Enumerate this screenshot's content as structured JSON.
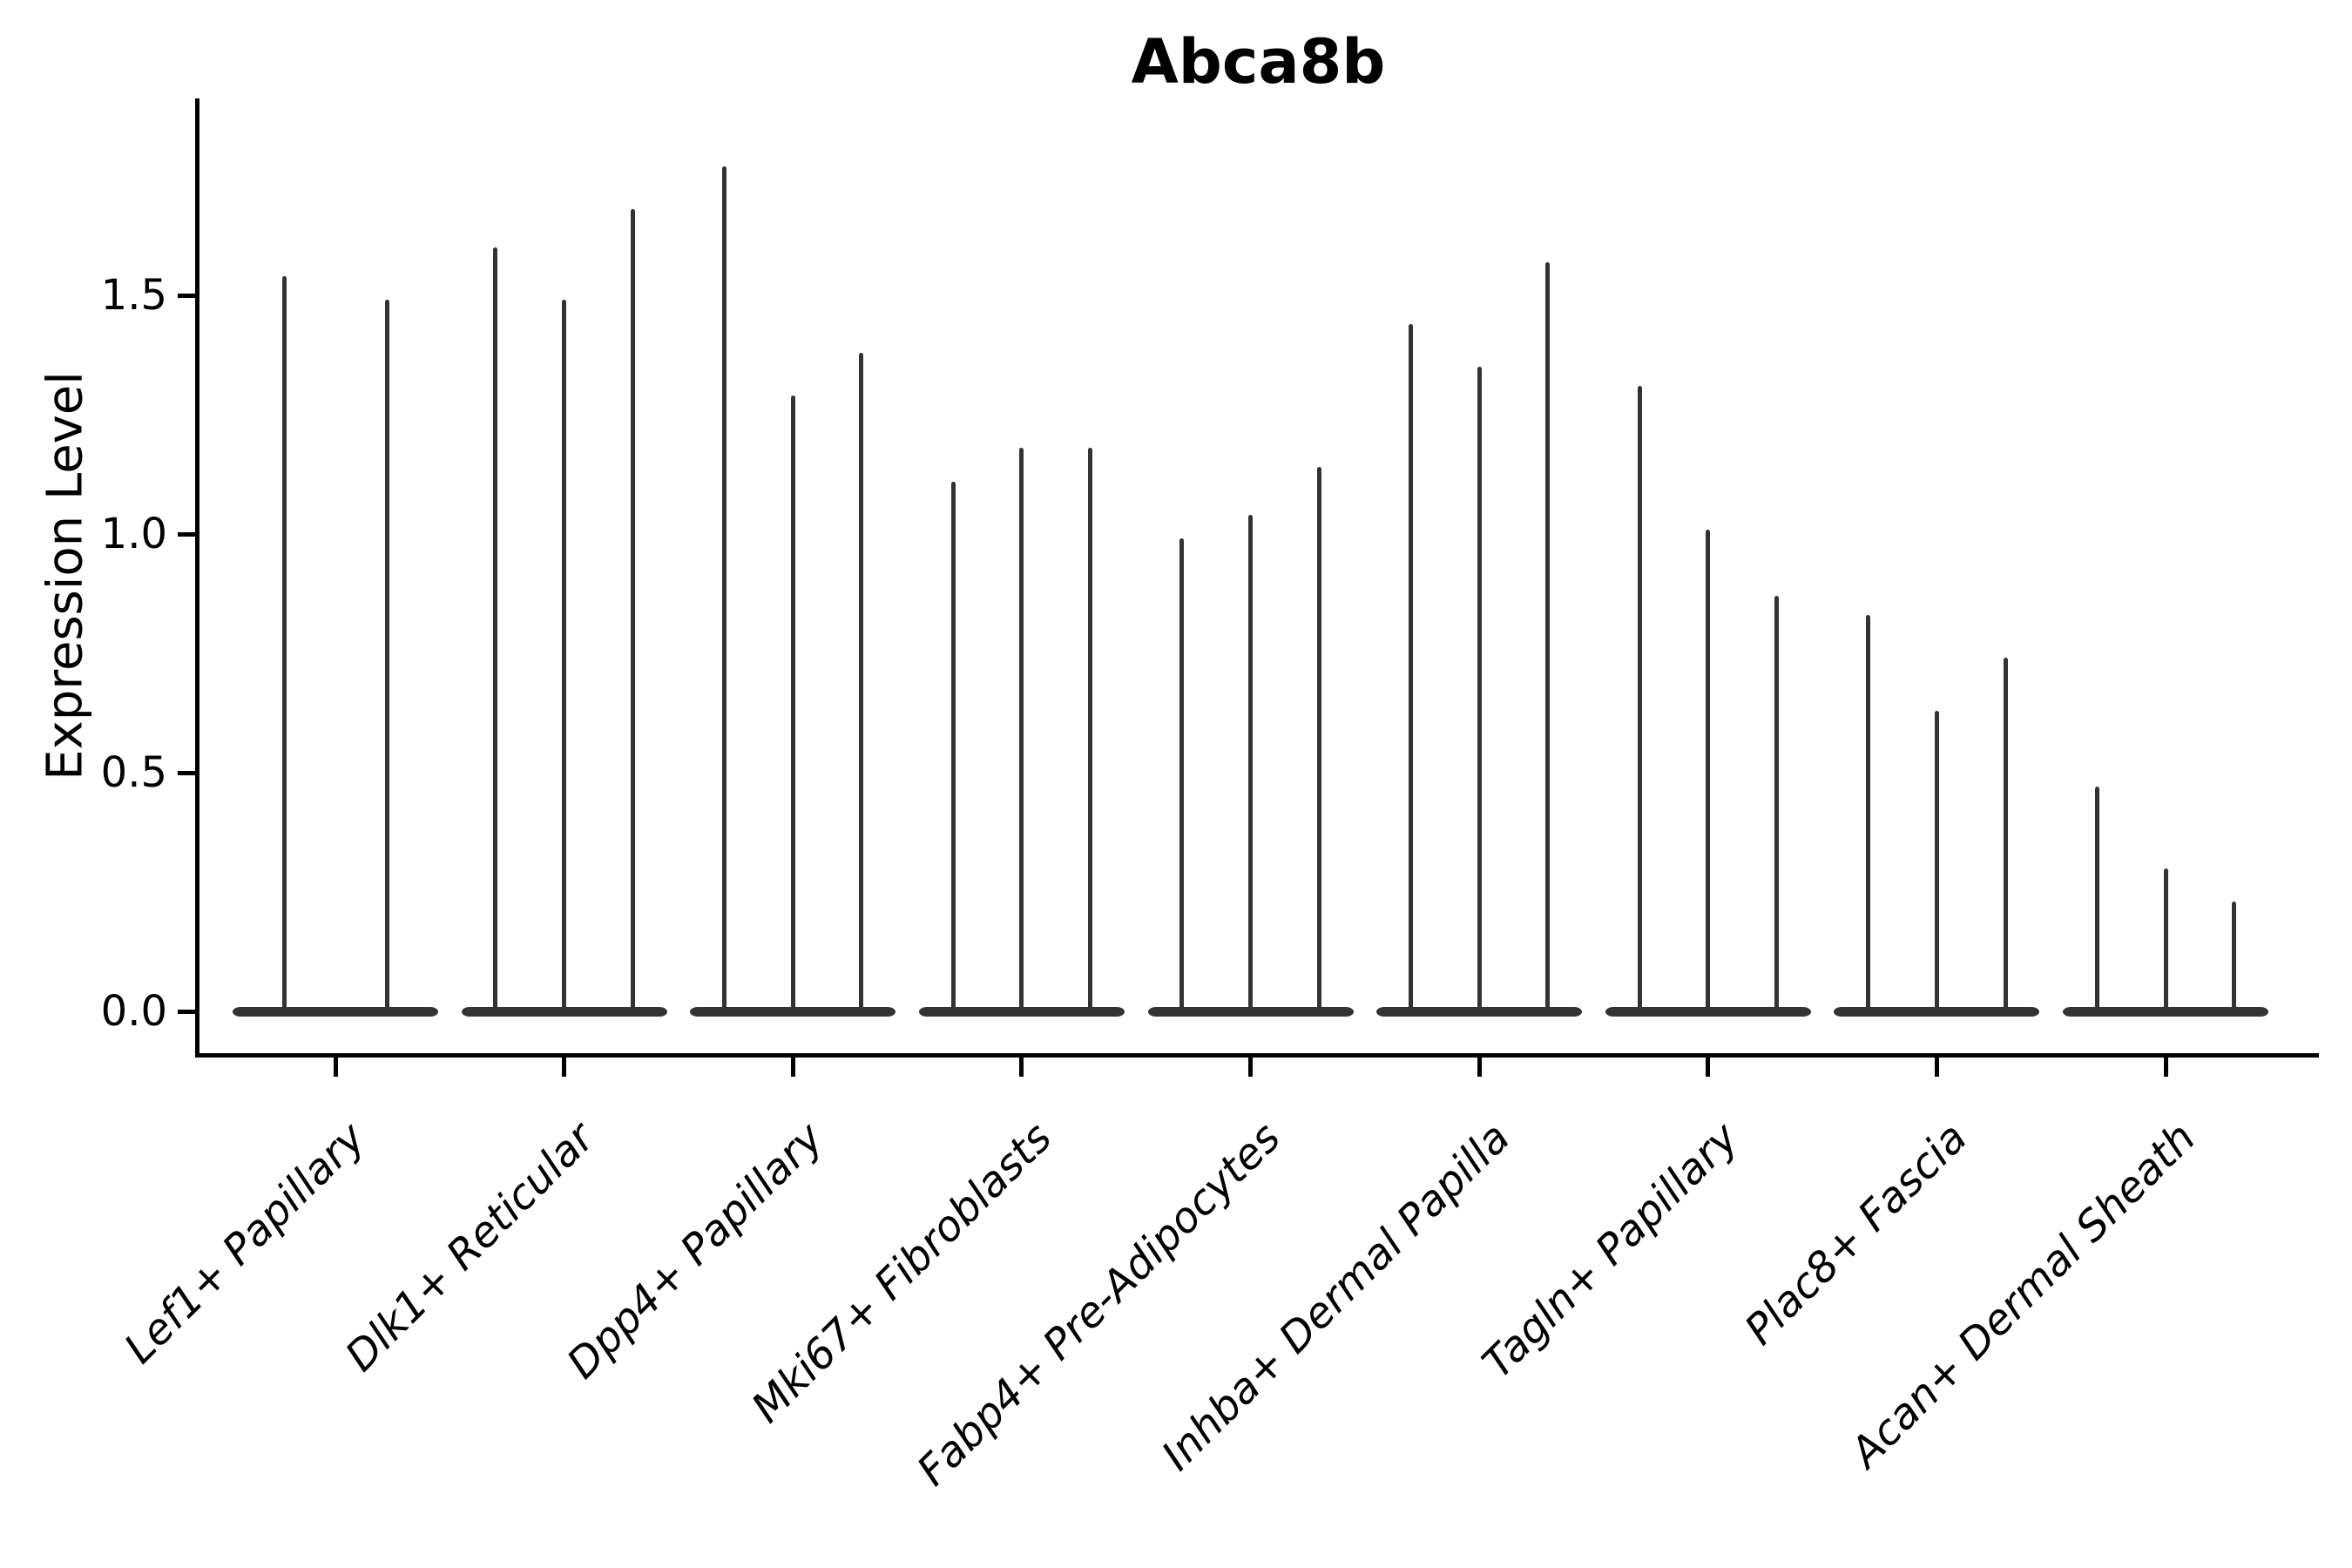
{
  "figure": {
    "title": "Abca8b",
    "y_axis": {
      "label": "Expression Level",
      "tick_labels": [
        "0.0",
        "0.5",
        "1.0",
        "1.5"
      ]
    }
  },
  "chart_data": {
    "type": "violin",
    "title": "Abca8b",
    "xlabel": "",
    "ylabel": "Expression Level",
    "ylim": [
      0,
      1.91
    ],
    "yticks": [
      0.0,
      0.5,
      1.0,
      1.5
    ],
    "ytick_labels": [
      "0.0",
      "0.5",
      "1.0",
      "1.5"
    ],
    "grid": false,
    "legend": "none",
    "colors": {
      "violin": "#333333",
      "axis": "#000000",
      "text": "#000000",
      "background": "#ffffff"
    },
    "categories": [
      "Lef1+ Papillary",
      "Dlk1+ Reticular",
      "Dpp4+ Papillary",
      "Mki67+ Fibroblasts",
      "Fabp4+ Pre-Adipocytes",
      "Inhba+ Dermal Papilla",
      "Tagln+ Papillary",
      "Plac8+ Fascia",
      "Acan+ Dermal Sheath"
    ],
    "violin_shape_note": "each violin is a flat wide bulk at expression 0 with a thin vertical spike up to its maximum expression value",
    "groups": [
      {
        "category": "Lef1+ Papillary",
        "violins": [
          {
            "max_expression": 1.54
          },
          {
            "max_expression": 1.49
          }
        ]
      },
      {
        "category": "Dlk1+ Reticular",
        "violins": [
          {
            "max_expression": 1.6
          },
          {
            "max_expression": 1.49
          },
          {
            "max_expression": 1.68
          }
        ]
      },
      {
        "category": "Dpp4+ Papillary",
        "violins": [
          {
            "max_expression": 1.77
          },
          {
            "max_expression": 1.29
          },
          {
            "max_expression": 1.38
          }
        ]
      },
      {
        "category": "Mki67+ Fibroblasts",
        "violins": [
          {
            "max_expression": 1.11
          },
          {
            "max_expression": 1.18
          },
          {
            "max_expression": 1.18
          }
        ]
      },
      {
        "category": "Fabp4+ Pre-Adipocytes",
        "violins": [
          {
            "max_expression": 0.99
          },
          {
            "max_expression": 1.04
          },
          {
            "max_expression": 1.14
          }
        ]
      },
      {
        "category": "Inhba+ Dermal Papilla",
        "violins": [
          {
            "max_expression": 1.44
          },
          {
            "max_expression": 1.35
          },
          {
            "max_expression": 1.57
          }
        ]
      },
      {
        "category": "Tagln+ Papillary",
        "violins": [
          {
            "max_expression": 1.31
          },
          {
            "max_expression": 1.01
          },
          {
            "max_expression": 0.87
          }
        ]
      },
      {
        "category": "Plac8+ Fascia",
        "violins": [
          {
            "max_expression": 0.83
          },
          {
            "max_expression": 0.63
          },
          {
            "max_expression": 0.74
          }
        ]
      },
      {
        "category": "Acan+ Dermal Sheath",
        "violins": [
          {
            "max_expression": 0.47
          },
          {
            "max_expression": 0.3
          },
          {
            "max_expression": 0.23
          }
        ]
      }
    ],
    "baseline_value": 0
  }
}
